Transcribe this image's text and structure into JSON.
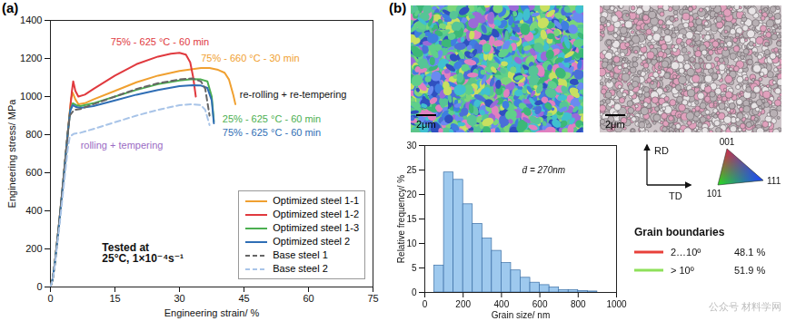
{
  "chart_data": [
    {
      "type": "line",
      "panel_label": "(a)",
      "xlabel": "Engineering strain/ %",
      "ylabel": "Engineering stress/ MPa",
      "xlim": [
        0,
        75
      ],
      "xticks": [
        0,
        15,
        30,
        45,
        60,
        75
      ],
      "ylim": [
        0,
        1400
      ],
      "yticks": [
        0,
        200,
        400,
        600,
        800,
        1000,
        1200,
        1400
      ],
      "grid": false,
      "legend": "lower right",
      "series": [
        {
          "name": "Optimized steel 1-1",
          "color": "#f0a030",
          "line_style": "solid",
          "x": [
            0,
            0.5,
            1,
            2,
            3,
            4,
            4.8,
            5.2,
            5.8,
            6.5,
            8,
            10,
            15,
            20,
            25,
            30,
            35,
            37,
            39,
            40.5,
            41.5,
            42.5,
            43
          ],
          "values": [
            0,
            40,
            120,
            330,
            560,
            800,
            990,
            1020,
            985,
            960,
            965,
            985,
            1030,
            1075,
            1110,
            1135,
            1150,
            1150,
            1140,
            1125,
            1090,
            1010,
            960
          ]
        },
        {
          "name": "Optimized steel 1-2",
          "color": "#e0393e",
          "line_style": "solid",
          "x": [
            0,
            0.5,
            1,
            2,
            3,
            4,
            5,
            5.3,
            5.8,
            6.5,
            8,
            10,
            15,
            20,
            25,
            28,
            30,
            31.5,
            32.5,
            33.2,
            33.8
          ],
          "values": [
            0,
            40,
            120,
            330,
            560,
            800,
            1030,
            1080,
            1030,
            1000,
            1010,
            1040,
            1110,
            1170,
            1210,
            1225,
            1230,
            1220,
            1180,
            1100,
            1000
          ]
        },
        {
          "name": "Optimized steel 1-3",
          "color": "#4caf50",
          "line_style": "solid",
          "x": [
            0,
            0.5,
            1,
            2,
            3,
            4,
            4.6,
            5.2,
            6,
            7,
            10,
            15,
            20,
            25,
            30,
            33,
            35,
            36.5,
            37.5,
            38
          ],
          "values": [
            0,
            40,
            120,
            330,
            560,
            800,
            930,
            965,
            955,
            950,
            965,
            1000,
            1035,
            1065,
            1085,
            1092,
            1090,
            1080,
            1000,
            870
          ]
        },
        {
          "name": "Optimized steel 2",
          "color": "#2f6eb5",
          "line_style": "solid",
          "x": [
            0,
            0.5,
            1,
            2,
            3,
            4,
            4.6,
            5.2,
            6,
            7,
            10,
            15,
            20,
            25,
            30,
            33,
            35,
            36.5,
            37.5,
            38
          ],
          "values": [
            0,
            40,
            120,
            330,
            560,
            800,
            925,
            955,
            945,
            940,
            950,
            980,
            1010,
            1035,
            1055,
            1060,
            1058,
            1045,
            980,
            860
          ]
        },
        {
          "name": "Base steel 1",
          "color": "#666666",
          "line_style": "dashed",
          "x": [
            0,
            0.5,
            1,
            2,
            3,
            4,
            4.5,
            5.5,
            7,
            10,
            15,
            20,
            25,
            30,
            33,
            35,
            36,
            37
          ],
          "values": [
            0,
            40,
            120,
            330,
            560,
            800,
            900,
            930,
            935,
            960,
            1000,
            1040,
            1070,
            1090,
            1095,
            1080,
            1040,
            900
          ]
        },
        {
          "name": "Base steel 2",
          "color": "#a8c4e8",
          "line_style": "dashed",
          "x": [
            0,
            0.5,
            1,
            2,
            3,
            4,
            4.5,
            5.5,
            7,
            10,
            15,
            20,
            25,
            30,
            33,
            35,
            36,
            37
          ],
          "values": [
            0,
            35,
            110,
            300,
            510,
            720,
            790,
            805,
            810,
            830,
            865,
            900,
            930,
            955,
            960,
            955,
            930,
            850
          ]
        }
      ],
      "annotations": [
        {
          "text": "75% - 625 °C - 60 min",
          "x": 14,
          "y": 1285,
          "color": "#e0393e"
        },
        {
          "text": "75% - 660 °C - 30 min",
          "x": 35,
          "y": 1200,
          "color": "#f0a030"
        },
        {
          "text": "re-rolling + re-tempering",
          "x": 44,
          "y": 1010,
          "color": "#111111"
        },
        {
          "text": "25% - 625 °C - 60 min",
          "x": 40,
          "y": 880,
          "color": "#4caf50"
        },
        {
          "text": "75% - 625 °C - 60 min",
          "x": 40,
          "y": 810,
          "color": "#2f6eb5"
        },
        {
          "text": "rolling + tempering",
          "x": 7,
          "y": 745,
          "color": "#9b6cc4"
        }
      ],
      "test_note": {
        "text": [
          "Tested at",
          "25°C, 1×10⁻⁴s⁻¹"
        ],
        "x": 12,
        "y": 230
      }
    },
    {
      "type": "histogram",
      "xlabel": "Grain size/ nm",
      "ylabel": "Relative frequency/ %",
      "xlim": [
        0,
        1000
      ],
      "xticks": [
        0,
        200,
        400,
        600,
        800,
        1000
      ],
      "ylim": [
        0,
        30
      ],
      "yticks": [
        0,
        5,
        10,
        15,
        20,
        25,
        30
      ],
      "grid": false,
      "color": "#9ec9ee",
      "bins": [
        50,
        100,
        150,
        200,
        250,
        300,
        350,
        400,
        450,
        500,
        550,
        600,
        650,
        700,
        750,
        800,
        850,
        900
      ],
      "values": [
        5.5,
        24.5,
        23,
        18,
        14,
        11,
        8.5,
        6,
        4.5,
        3,
        2,
        1.5,
        1,
        0.5,
        0.5,
        0.3,
        0.2
      ],
      "annotations": [
        {
          "text": "d̄ = 270nm",
          "x": 620,
          "y": 25
        }
      ]
    }
  ],
  "panel_b": {
    "label": "(b)",
    "maps": [
      {
        "scale_bar": "2μm"
      },
      {
        "scale_bar": "2μm"
      }
    ],
    "directions": {
      "vertical": "RD",
      "horizontal": "TD"
    },
    "ipf_corners": {
      "top": "001",
      "bottom_left": "101",
      "right": "111"
    },
    "grain_boundaries": {
      "title": "Grain boundaries",
      "rows": [
        {
          "label": "2…10º",
          "share": "48.1 %",
          "color": "#e8403a"
        },
        {
          "label": "> 10º",
          "share": "51.9 %",
          "color": "#8ee05a"
        }
      ]
    },
    "watermark": "公众号 材料学网"
  }
}
